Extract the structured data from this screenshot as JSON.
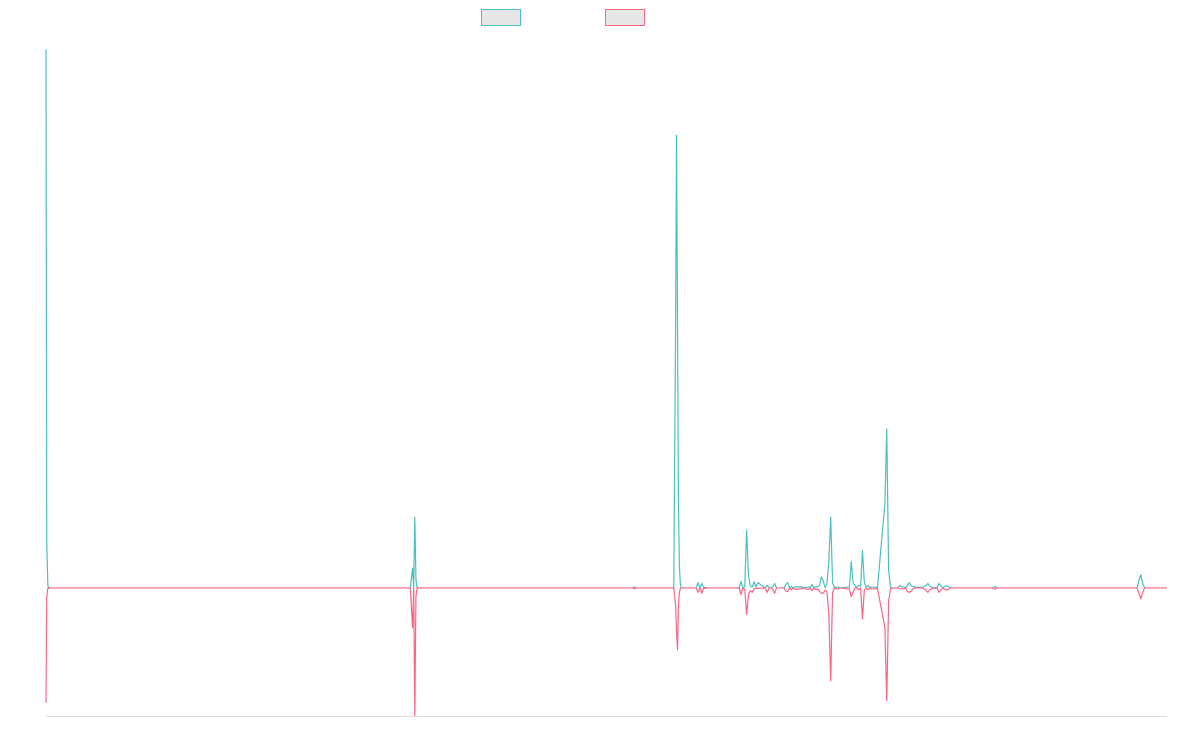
{
  "chart_data": {
    "type": "line",
    "title": "",
    "xlabel": "",
    "ylabel": "",
    "grid": false,
    "legend_position": "top-center",
    "x": [
      0,
      0.4,
      1,
      1.6,
      2.5,
      4,
      6,
      8,
      10,
      12,
      195,
      196.2,
      196.8,
      197.4,
      198,
      198.6,
      199.2,
      199.8,
      200.4,
      201,
      202,
      314,
      315,
      316,
      336,
      337,
      337.5,
      338,
      338.5,
      339,
      339.5,
      340,
      340.5,
      341,
      342,
      343,
      344,
      348,
      349,
      350,
      351,
      352,
      353,
      354,
      355,
      356,
      357,
      371,
      372,
      373,
      374,
      375,
      376,
      377,
      378,
      379,
      380,
      381,
      385,
      386,
      387,
      388,
      389,
      390,
      391,
      395,
      396,
      397,
      398,
      399,
      400,
      401,
      402,
      406,
      407,
      408,
      409,
      410,
      411,
      412,
      413,
      414,
      415,
      416,
      417,
      418,
      419,
      420,
      421,
      422,
      423,
      424,
      425,
      429,
      430,
      431,
      432,
      433,
      434,
      435,
      436,
      437,
      438,
      439,
      440,
      441,
      442,
      443,
      444,
      445,
      449,
      450,
      451,
      452,
      453,
      454,
      455,
      456,
      457,
      458,
      459,
      460,
      461,
      462,
      463,
      464,
      465,
      469,
      470,
      471,
      472,
      473,
      474,
      475,
      476,
      477,
      478,
      479,
      480,
      481,
      482,
      483,
      484,
      485,
      486,
      487,
      488,
      489,
      490,
      507,
      508,
      509,
      584,
      585,
      586,
      587,
      588,
      600
    ],
    "ylim": [
      -0.29,
      1.25
    ],
    "series": [
      {
        "color": "#4bc0c0",
        "values": [
          1.22,
          0.1,
          0.005,
          0,
          0,
          0,
          0,
          0,
          0,
          0,
          0,
          0.045,
          0.002,
          0.16,
          0.02,
          0,
          0,
          0,
          0,
          0,
          0,
          0,
          0.002,
          0,
          0,
          0.6,
          1.025,
          0.6,
          0.2,
          0.05,
          0.01,
          0,
          0,
          0,
          0,
          0,
          0,
          0,
          0.012,
          0,
          0.01,
          0.001,
          0.001,
          0,
          0,
          0,
          0,
          0,
          0.015,
          0,
          0.003,
          0.13,
          0.028,
          0.004,
          0.002,
          0.014,
          0.002,
          0.012,
          0,
          0.006,
          0,
          0,
          0.002,
          0.01,
          0,
          0,
          0.008,
          0.012,
          0,
          0.003,
          0,
          0.002,
          0.003,
          0.001,
          0.001,
          0.003,
          0,
          0.008,
          0.001,
          0.002,
          0.003,
          0.005,
          0.025,
          0.016,
          0.001,
          0.008,
          0.06,
          0.16,
          0.012,
          0.001,
          0.002,
          0.002,
          0,
          0.002,
          0.002,
          0.06,
          0.012,
          0.005,
          0.001,
          0.006,
          0.004,
          0.085,
          0.013,
          0.001,
          0.005,
          0.001,
          0.002,
          0.002,
          0.002,
          0,
          0.19,
          0.36,
          0.04,
          0.002,
          0,
          0,
          0,
          0,
          0.006,
          0.002,
          0.002,
          0,
          0.005,
          0.012,
          0.005,
          0.003,
          0.002,
          0.001,
          0.004,
          0.005,
          0.01,
          0.004,
          0.002,
          0,
          0.001,
          0.001,
          0.01,
          0.004,
          0.001,
          0.003,
          0.005,
          0.003,
          0.001,
          0,
          0,
          0,
          0,
          0,
          0,
          0,
          0.003,
          0,
          0,
          0.018,
          0.03,
          0.01,
          0,
          0
        ]
      },
      {
        "color": "#ff6384",
        "values": [
          -0.26,
          -0.02,
          0,
          -0.001,
          0,
          0,
          0,
          0,
          0,
          0,
          0,
          -0.09,
          0,
          -0.29,
          -0.02,
          0,
          0,
          0,
          0,
          0,
          0,
          0,
          -0.002,
          0,
          0,
          -0.04,
          -0.1,
          -0.14,
          -0.04,
          -0.01,
          -0.002,
          0,
          0,
          0,
          0,
          0,
          0,
          0,
          -0.01,
          0,
          -0.012,
          -0.001,
          -0.001,
          0,
          0,
          0,
          0,
          0,
          -0.015,
          0,
          -0.003,
          -0.06,
          -0.015,
          -0.006,
          -0.01,
          -0.002,
          -0.001,
          -0.001,
          0,
          -0.01,
          0,
          0,
          -0.004,
          -0.012,
          0,
          0,
          -0.007,
          -0.008,
          0,
          -0.004,
          0,
          -0.004,
          -0.003,
          0,
          -0.002,
          -0.004,
          0,
          -0.006,
          0,
          -0.004,
          -0.002,
          -0.008,
          -0.012,
          -0.012,
          -0.005,
          -0.008,
          -0.06,
          -0.21,
          -0.01,
          0,
          -0.002,
          -0.002,
          0,
          -0.002,
          -0.002,
          -0.02,
          -0.01,
          0,
          0,
          -0.004,
          0,
          -0.07,
          -0.005,
          -0.001,
          -0.004,
          0,
          -0.002,
          -0.002,
          -0.002,
          0,
          -0.09,
          -0.255,
          -0.03,
          -0.002,
          0,
          0,
          0,
          0,
          -0.002,
          -0.002,
          -0.002,
          0,
          -0.008,
          -0.01,
          -0.008,
          -0.002,
          0,
          0,
          -0.002,
          -0.005,
          -0.01,
          -0.004,
          -0.002,
          0,
          -0.001,
          0,
          -0.01,
          -0.004,
          0,
          -0.003,
          -0.005,
          -0.003,
          0,
          0,
          0,
          0,
          0,
          0,
          0,
          0,
          -0.003,
          0,
          0,
          -0.012,
          -0.025,
          -0.01,
          0,
          0
        ]
      }
    ]
  }
}
